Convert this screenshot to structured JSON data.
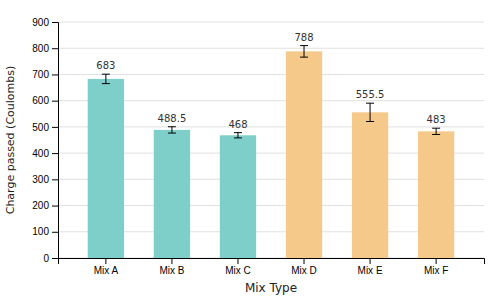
{
  "chart_data": {
    "type": "bar",
    "categories": [
      "Mix A",
      "Mix B",
      "Mix C",
      "Mix D",
      "Mix E",
      "Mix F"
    ],
    "values": [
      683,
      488.5,
      468,
      788,
      555.5,
      483
    ],
    "errors": [
      18,
      12,
      10,
      22,
      35,
      12
    ],
    "xlabel": "Mix Type",
    "ylabel": "Charge passed (Coulombs)",
    "ylim": [
      0,
      900
    ],
    "yticks": [
      0,
      100,
      200,
      300,
      400,
      500,
      600,
      700,
      800,
      900
    ],
    "colors": [
      "#7ececa",
      "#7ececa",
      "#7ececa",
      "#f5c98a",
      "#f5c98a",
      "#f5c98a"
    ],
    "grid": true,
    "data_labels": true
  }
}
